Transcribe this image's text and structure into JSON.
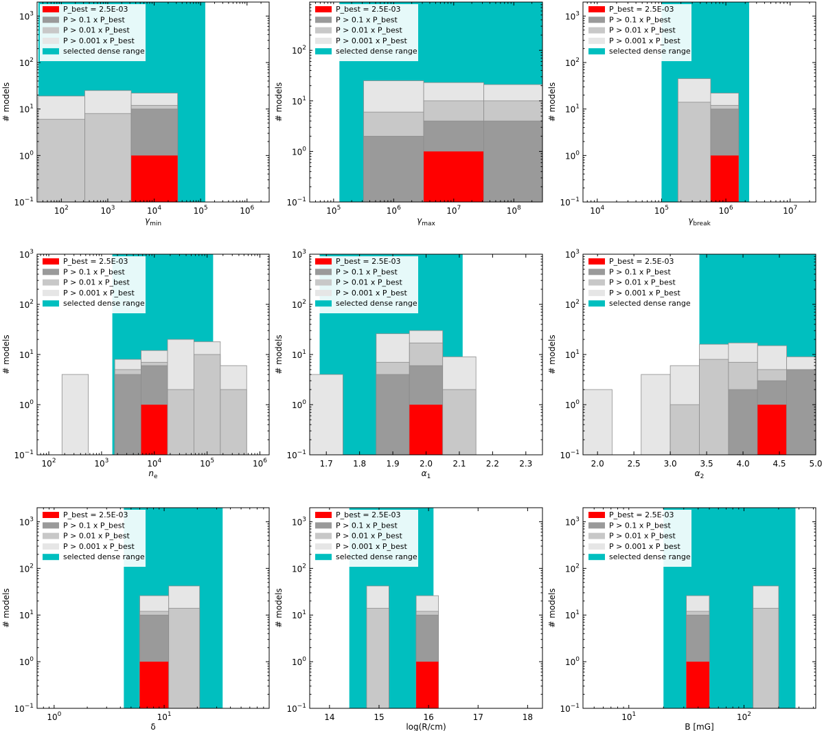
{
  "legend": {
    "p_best_label": "P_best = 2.5E-03",
    "p01_label": "P > 0.1 x P_best",
    "p001_label": "P > 0.01 x P_best",
    "p0001_label": "P > 0.001 x P_best",
    "dense_label": "selected dense range"
  },
  "colors": {
    "best": "#ff0000",
    "p01": "#9a9a9a",
    "p001": "#c8c8c8",
    "p0001": "#e6e6e6",
    "dense": "#00bfbf",
    "bar_edge": "#8c8c8c"
  },
  "chart_data": [
    {
      "id": "gamma-min",
      "type": "bar",
      "xscale": "log",
      "yscale": "log",
      "xlabel_base": "γ",
      "xlabel_sub": "min",
      "ylabel": "# models",
      "xlim": [
        30,
        3000000
      ],
      "ylim": [
        0.1,
        2000
      ],
      "xticks": [
        100,
        1000,
        10000,
        100000,
        1000000
      ],
      "xtick_labels": [
        [
          "10",
          "2"
        ],
        [
          "10",
          "3"
        ],
        [
          "10",
          "4"
        ],
        [
          "10",
          "5"
        ],
        [
          "10",
          "6"
        ]
      ],
      "yticks": [
        0.1,
        1,
        10,
        100,
        1000
      ],
      "ytick_labels": [
        [
          "10",
          "−1"
        ],
        [
          "10",
          "0"
        ],
        [
          "10",
          "1"
        ],
        [
          "10",
          "2"
        ],
        [
          "10",
          "3"
        ]
      ],
      "dense_range": [
        32,
        126000
      ],
      "bins": [
        {
          "x0": 32,
          "x1": 320,
          "p0001": 19,
          "p001": 6,
          "p01": null,
          "best": null
        },
        {
          "x0": 320,
          "x1": 3200,
          "p0001": 25,
          "p001": 8,
          "p01": null,
          "best": null
        },
        {
          "x0": 3200,
          "x1": 32000,
          "p0001": 22,
          "p001": 12,
          "p01": 10,
          "best": 1
        }
      ]
    },
    {
      "id": "gamma-max",
      "type": "bar",
      "xscale": "log",
      "yscale": "log",
      "xlabel_base": "γ",
      "xlabel_sub": "max",
      "ylabel": "# models",
      "xlim": [
        40000,
        300000000
      ],
      "ylim": [
        0.1,
        900
      ],
      "xticks": [
        100000,
        1000000,
        10000000,
        100000000
      ],
      "xtick_labels": [
        [
          "10",
          "5"
        ],
        [
          "10",
          "6"
        ],
        [
          "10",
          "7"
        ],
        [
          "10",
          "8"
        ]
      ],
      "yticks": [
        0.1,
        1,
        10,
        100
      ],
      "ytick_labels": [
        [
          "10",
          "−1"
        ],
        [
          "10",
          "0"
        ],
        [
          "10",
          "1"
        ],
        [
          "10",
          "2"
        ]
      ],
      "dense_range": [
        125000,
        300000000
      ],
      "bins": [
        {
          "x0": 316000,
          "x1": 3160000,
          "p0001": 25,
          "p001": 6,
          "p01": 2,
          "best": null
        },
        {
          "x0": 3160000,
          "x1": 31600000,
          "p0001": 23,
          "p001": 10,
          "p01": 4,
          "best": 1
        },
        {
          "x0": 31600000,
          "x1": 300000000,
          "p0001": 21,
          "p001": 10,
          "p01": 4,
          "best": null
        }
      ]
    },
    {
      "id": "gamma-break",
      "type": "bar",
      "xscale": "log",
      "yscale": "log",
      "xlabel_base": "γ",
      "xlabel_sub": "break",
      "ylabel": "# models",
      "xlim": [
        6000,
        25000000
      ],
      "ylim": [
        0.1,
        2000
      ],
      "xticks": [
        10000,
        100000,
        1000000,
        10000000
      ],
      "xtick_labels": [
        [
          "10",
          "4"
        ],
        [
          "10",
          "5"
        ],
        [
          "10",
          "6"
        ],
        [
          "10",
          "7"
        ]
      ],
      "yticks": [
        0.1,
        1,
        10,
        100,
        1000
      ],
      "ytick_labels": [
        [
          "10",
          "−1"
        ],
        [
          "10",
          "0"
        ],
        [
          "10",
          "1"
        ],
        [
          "10",
          "2"
        ],
        [
          "10",
          "3"
        ]
      ],
      "dense_range": [
        100000,
        2300000
      ],
      "bins": [
        {
          "x0": 180000,
          "x1": 580000,
          "p0001": 45,
          "p001": 14,
          "p01": null,
          "best": null
        },
        {
          "x0": 580000,
          "x1": 1580000,
          "p0001": 22,
          "p001": 12,
          "p01": 10,
          "best": 1
        }
      ]
    },
    {
      "id": "n-e",
      "type": "bar",
      "xscale": "log",
      "yscale": "log",
      "xlabel_base": "n",
      "xlabel_sub": "e",
      "ylabel": "# models",
      "xlim": [
        60,
        1500000
      ],
      "ylim": [
        0.1,
        1000
      ],
      "xticks": [
        100,
        1000,
        10000,
        100000,
        1000000
      ],
      "xtick_labels": [
        [
          "10",
          "2"
        ],
        [
          "10",
          "3"
        ],
        [
          "10",
          "4"
        ],
        [
          "10",
          "5"
        ],
        [
          "10",
          "6"
        ]
      ],
      "yticks": [
        0.1,
        1,
        10,
        100,
        1000
      ],
      "ytick_labels": [
        [
          "10",
          "−1"
        ],
        [
          "10",
          "0"
        ],
        [
          "10",
          "1"
        ],
        [
          "10",
          "2"
        ],
        [
          "10",
          "3"
        ]
      ],
      "dense_range": [
        1600,
        130000
      ],
      "bins": [
        {
          "x0": 178,
          "x1": 562,
          "p0001": 4,
          "p001": null,
          "p01": null,
          "best": null
        },
        {
          "x0": 1780,
          "x1": 5620,
          "p0001": 8,
          "p001": 5,
          "p01": 4,
          "best": null
        },
        {
          "x0": 5620,
          "x1": 17800,
          "p0001": 12,
          "p001": 7,
          "p01": 6,
          "best": 1
        },
        {
          "x0": 17800,
          "x1": 56200,
          "p0001": 20,
          "p001": 2,
          "p01": null,
          "best": null
        },
        {
          "x0": 56200,
          "x1": 178000,
          "p0001": 18,
          "p001": 10,
          "p01": null,
          "best": null
        },
        {
          "x0": 178000,
          "x1": 562000,
          "p0001": 6,
          "p001": 2,
          "p01": null,
          "best": null
        }
      ]
    },
    {
      "id": "alpha-1",
      "type": "bar",
      "xscale": "linear",
      "yscale": "log",
      "xlabel_base": "α",
      "xlabel_sub": "1",
      "ylabel": "# models",
      "xlim": [
        1.65,
        2.35
      ],
      "ylim": [
        0.1,
        1000
      ],
      "xticks": [
        1.7,
        1.8,
        1.9,
        2.0,
        2.1,
        2.2,
        2.3
      ],
      "xtick_labels": [
        [
          "1.7",
          ""
        ],
        [
          "1.8",
          ""
        ],
        [
          "1.9",
          ""
        ],
        [
          "2.0",
          ""
        ],
        [
          "2.1",
          ""
        ],
        [
          "2.2",
          ""
        ],
        [
          "2.3",
          ""
        ]
      ],
      "yticks": [
        0.1,
        1,
        10,
        100,
        1000
      ],
      "ytick_labels": [
        [
          "10",
          "−1"
        ],
        [
          "10",
          "0"
        ],
        [
          "10",
          "1"
        ],
        [
          "10",
          "2"
        ],
        [
          "10",
          "3"
        ]
      ],
      "dense_range": [
        1.68,
        2.11
      ],
      "bins": [
        {
          "x0": 1.65,
          "x1": 1.75,
          "p0001": 4,
          "p001": null,
          "p01": null,
          "best": null
        },
        {
          "x0": 1.85,
          "x1": 1.95,
          "p0001": 26,
          "p001": 7,
          "p01": 4,
          "best": null
        },
        {
          "x0": 1.95,
          "x1": 2.05,
          "p0001": 30,
          "p001": 17,
          "p01": 6,
          "best": 1
        },
        {
          "x0": 2.05,
          "x1": 2.15,
          "p0001": 9,
          "p001": 2,
          "p01": null,
          "best": null
        }
      ]
    },
    {
      "id": "alpha-2",
      "type": "bar",
      "xscale": "linear",
      "yscale": "log",
      "xlabel_base": "α",
      "xlabel_sub": "2",
      "ylabel": "# models",
      "xlim": [
        1.8,
        5.0
      ],
      "ylim": [
        0.1,
        1000
      ],
      "xticks": [
        2.0,
        2.5,
        3.0,
        3.5,
        4.0,
        4.5,
        5.0
      ],
      "xtick_labels": [
        [
          "2.0",
          ""
        ],
        [
          "2.5",
          ""
        ],
        [
          "3.0",
          ""
        ],
        [
          "3.5",
          ""
        ],
        [
          "4.0",
          ""
        ],
        [
          "4.5",
          ""
        ],
        [
          "5.0",
          ""
        ]
      ],
      "yticks": [
        0.1,
        1,
        10,
        100,
        1000
      ],
      "ytick_labels": [
        [
          "10",
          "−1"
        ],
        [
          "10",
          "0"
        ],
        [
          "10",
          "1"
        ],
        [
          "10",
          "2"
        ],
        [
          "10",
          "3"
        ]
      ],
      "dense_range": [
        3.4,
        5.0
      ],
      "bins": [
        {
          "x0": 1.8,
          "x1": 2.2,
          "p0001": 2,
          "p001": null,
          "p01": null,
          "best": null
        },
        {
          "x0": 2.6,
          "x1": 3.0,
          "p0001": 4,
          "p001": null,
          "p01": null,
          "best": null
        },
        {
          "x0": 3.0,
          "x1": 3.4,
          "p0001": 6,
          "p001": 1,
          "p01": null,
          "best": null
        },
        {
          "x0": 3.4,
          "x1": 3.8,
          "p0001": 16,
          "p001": 8,
          "p01": null,
          "best": null
        },
        {
          "x0": 3.8,
          "x1": 4.2,
          "p0001": 17,
          "p001": 7,
          "p01": 2,
          "best": null
        },
        {
          "x0": 4.2,
          "x1": 4.6,
          "p0001": 15,
          "p001": 5,
          "p01": 3,
          "best": 1
        },
        {
          "x0": 4.6,
          "x1": 5.0,
          "p0001": 9,
          "p001": 5,
          "p01": 5,
          "best": null
        }
      ]
    },
    {
      "id": "delta",
      "type": "bar",
      "xscale": "log",
      "yscale": "log",
      "xlabel_base": "δ",
      "xlabel_sub": "",
      "ylabel": "# models",
      "xlim": [
        0.7,
        90
      ],
      "ylim": [
        0.1,
        2000
      ],
      "xticks": [
        1,
        10
      ],
      "xtick_labels": [
        [
          "10",
          "0"
        ],
        [
          "10",
          "1"
        ]
      ],
      "yticks": [
        0.1,
        1,
        10,
        100,
        1000
      ],
      "ytick_labels": [
        [
          "10",
          "−1"
        ],
        [
          "10",
          "0"
        ],
        [
          "10",
          "1"
        ],
        [
          "10",
          "2"
        ],
        [
          "10",
          "3"
        ]
      ],
      "dense_range": [
        4.3,
        34
      ],
      "bins": [
        {
          "x0": 6.0,
          "x1": 11.0,
          "p0001": 26,
          "p001": 12,
          "p01": 10,
          "best": 1
        },
        {
          "x0": 11.0,
          "x1": 21.0,
          "p0001": 42,
          "p001": 14,
          "p01": null,
          "best": null
        }
      ]
    },
    {
      "id": "log-r",
      "type": "bar",
      "xscale": "linear",
      "yscale": "log",
      "xlabel_base": "log(R/cm)",
      "xlabel_sub": "",
      "ylabel": "# models",
      "xlim": [
        13.6,
        18.3
      ],
      "ylim": [
        0.1,
        2000
      ],
      "xticks": [
        14,
        15,
        16,
        17,
        18
      ],
      "xtick_labels": [
        [
          "14",
          ""
        ],
        [
          "15",
          ""
        ],
        [
          "16",
          ""
        ],
        [
          "17",
          ""
        ],
        [
          "18",
          ""
        ]
      ],
      "yticks": [
        0.1,
        1,
        10,
        100,
        1000
      ],
      "ytick_labels": [
        [
          "10",
          "−1"
        ],
        [
          "10",
          "0"
        ],
        [
          "10",
          "1"
        ],
        [
          "10",
          "2"
        ],
        [
          "10",
          "3"
        ]
      ],
      "dense_range": [
        14.4,
        16.1
      ],
      "bins": [
        {
          "x0": 14.75,
          "x1": 15.2,
          "p0001": 42,
          "p001": 14,
          "p01": null,
          "best": null
        },
        {
          "x0": 15.75,
          "x1": 16.2,
          "p0001": 26,
          "p001": 12,
          "p01": 10,
          "best": 1
        }
      ]
    },
    {
      "id": "b-field",
      "type": "bar",
      "xscale": "log",
      "yscale": "log",
      "xlabel_base": "B [mG]",
      "xlabel_sub": "",
      "ylabel": "# models",
      "xlim": [
        4,
        420
      ],
      "ylim": [
        0.1,
        2000
      ],
      "xticks": [
        10,
        100
      ],
      "xtick_labels": [
        [
          "10",
          "1"
        ],
        [
          "10",
          "2"
        ]
      ],
      "yticks": [
        0.1,
        1,
        10,
        100,
        1000
      ],
      "ytick_labels": [
        [
          "10",
          "−1"
        ],
        [
          "10",
          "0"
        ],
        [
          "10",
          "1"
        ],
        [
          "10",
          "2"
        ],
        [
          "10",
          "3"
        ]
      ],
      "dense_range": [
        20,
        280
      ],
      "bins": [
        {
          "x0": 31.6,
          "x1": 50,
          "p0001": 26,
          "p001": 12,
          "p01": 10,
          "best": 1
        },
        {
          "x0": 120,
          "x1": 200,
          "p0001": 42,
          "p001": 14,
          "p01": null,
          "best": null
        }
      ]
    }
  ]
}
